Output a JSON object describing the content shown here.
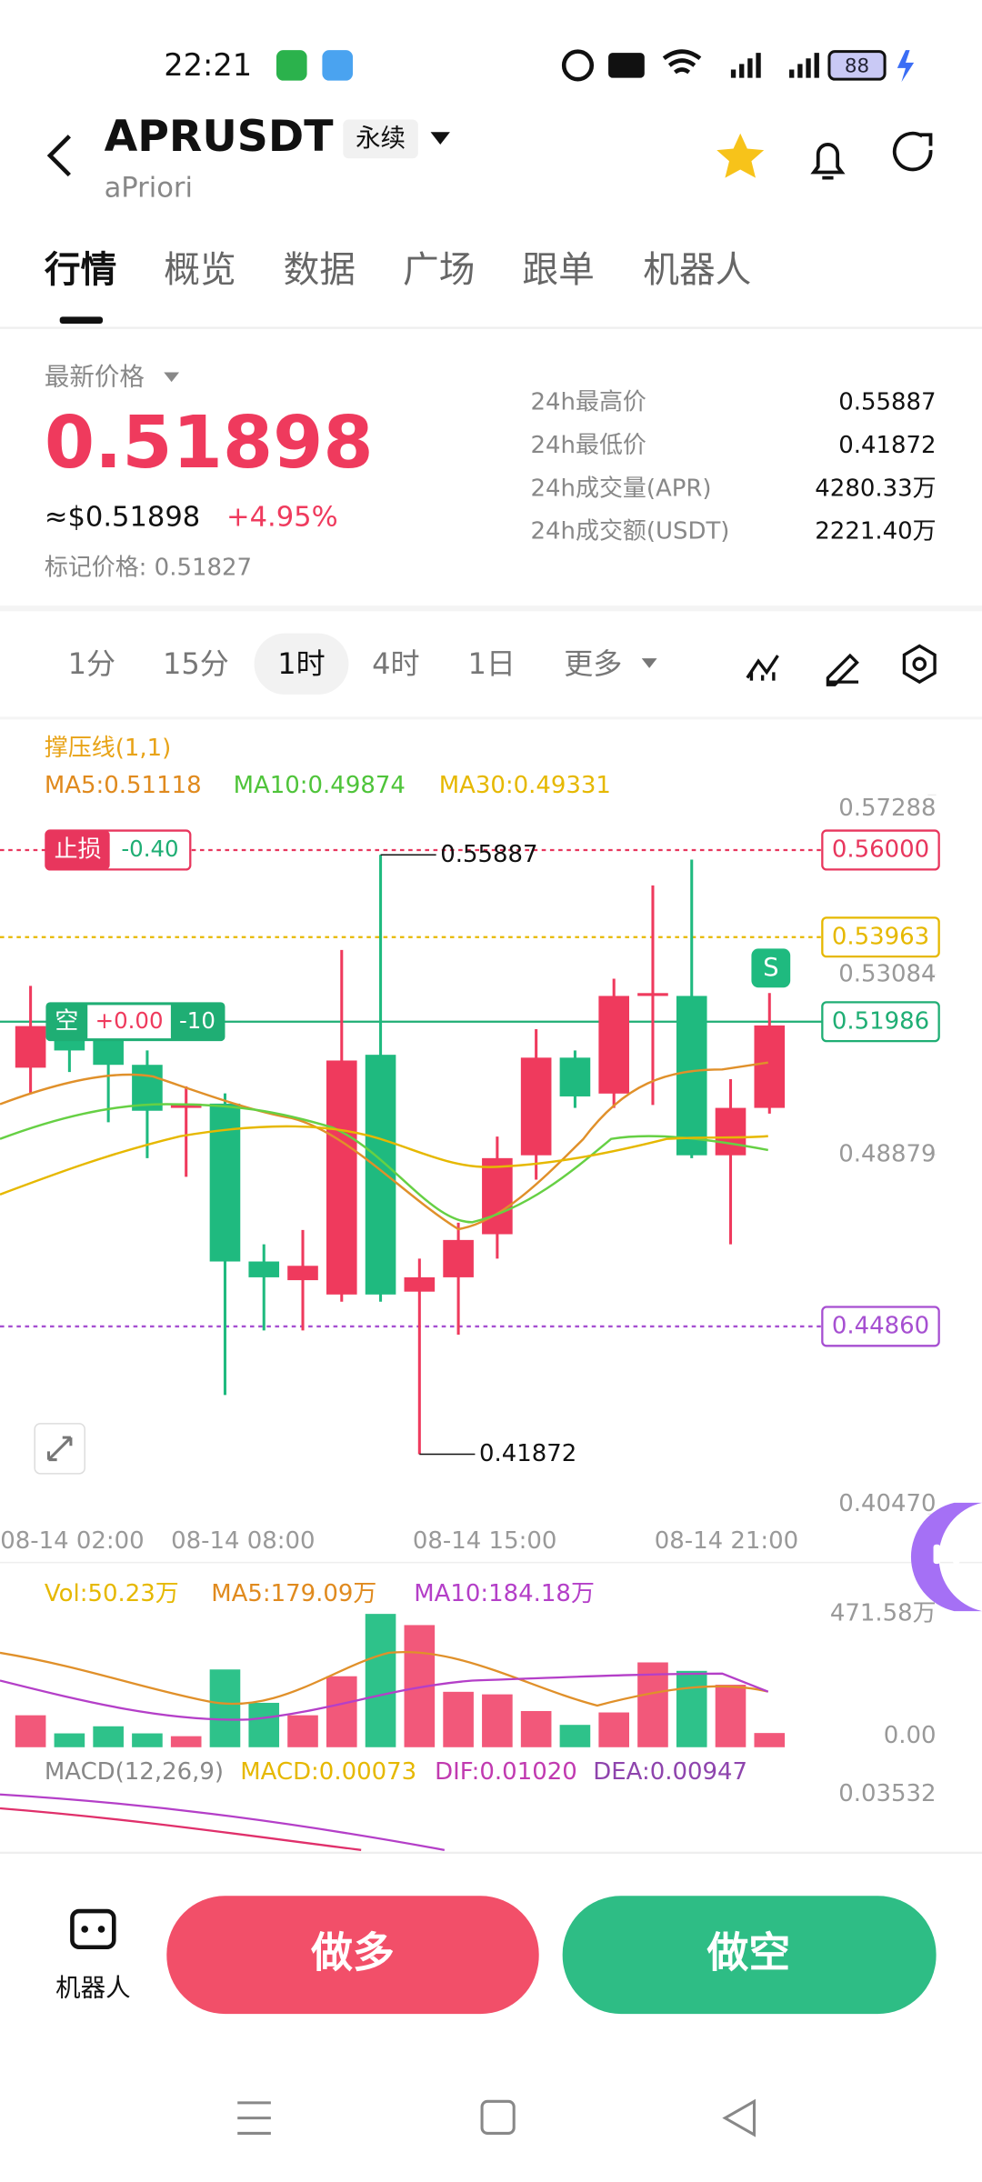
{
  "status_bar": {
    "time": "22:21",
    "battery": "88"
  },
  "header": {
    "symbol": "APRUSDT",
    "contract": "永续",
    "name": "aPriori"
  },
  "tabs": [
    "行情",
    "概览",
    "数据",
    "广场",
    "跟单",
    "机器人"
  ],
  "price": {
    "label": "最新价格",
    "last": "0.51898",
    "usd": "≈$0.51898",
    "change": "+4.95%",
    "mark": "标记价格: 0.51827"
  },
  "stats": [
    {
      "label": "24h最高价",
      "value": "0.55887"
    },
    {
      "label": "24h最低价",
      "value": "0.41872"
    },
    {
      "label": "24h成交量(APR)",
      "value": "4280.33万"
    },
    {
      "label": "24h成交额(USDT)",
      "value": "2221.40万"
    }
  ],
  "intervals": [
    "1分",
    "15分",
    "1时",
    "4时",
    "1日",
    "更多"
  ],
  "kline": {
    "indicator": "撑压线(1,1)",
    "ma": [
      "MA5:0.51118",
      "MA10:0.49874",
      "MA30:0.49331"
    ],
    "ylim": [
      0.40313,
      0.58988
    ],
    "yticks": [
      0.57288,
      0.53084,
      0.48879,
      {
        "value": 0.4047,
        "label": "0.40470"
      }
    ],
    "candles": [
      [
        0.5091,
        0.52823,
        0.50305,
        0.51883
      ],
      [
        0.51816,
        0.52152,
        0.50809,
        0.51313
      ],
      [
        0.51581,
        0.51984,
        0.49634,
        0.50977
      ],
      [
        0.50977,
        0.51313,
        0.48795,
        0.49903
      ],
      [
        0.4997,
        0.50473,
        0.48358,
        0.5007
      ],
      [
        0.5007,
        0.5031,
        0.43256,
        0.46378
      ],
      [
        0.46378,
        0.46781,
        0.44766,
        0.46008
      ],
      [
        0.45941,
        0.47116,
        0.44766,
        0.46277
      ],
      [
        0.45606,
        0.53662,
        0.45438,
        0.51078
      ],
      [
        0.51212,
        0.55887,
        0.45438,
        0.45606
      ],
      [
        0.45673,
        0.46445,
        0.41872,
        0.46008
      ],
      [
        0.46008,
        0.47284,
        0.44666,
        0.46881
      ],
      [
        0.47016,
        0.49298,
        0.46445,
        0.48795
      ],
      [
        0.48862,
        0.51811,
        0.48291,
        0.51145
      ],
      [
        0.51145,
        0.51313,
        0.4997,
        0.50238
      ],
      [
        0.50305,
        0.52991,
        0.4997,
        0.52588
      ],
      [
        0.52588,
        0.55173,
        0.50037,
        0.52655
      ],
      [
        0.52588,
        0.55777,
        0.48795,
        0.48862
      ],
      [
        0.48862,
        0.50641,
        0.46781,
        0.4997
      ],
      [
        0.4997,
        0.52655,
        0.49836,
        0.51898
      ]
    ],
    "levels": [
      {
        "value": 0.56,
        "label": "0.56000",
        "color": "#e8365d"
      },
      {
        "value": 0.53963,
        "label": "0.53963",
        "color": "#e6b800"
      },
      {
        "value": 0.51986,
        "label": "0.51986",
        "color": "#1fae74"
      },
      {
        "value": 0.4486,
        "label": "0.44860",
        "color": "#a64fd1"
      }
    ],
    "stop_loss": {
      "label": "止损",
      "value": "-0.40"
    },
    "position": {
      "side": "空",
      "pnl": "+0.00",
      "size": "-10"
    },
    "signal": "S",
    "high_mark": {
      "value": 0.55887,
      "label": "0.55887"
    },
    "low_mark": {
      "value": 0.41872,
      "label": "0.41872"
    },
    "times": [
      "08-14 02:00",
      "08-14 08:00",
      "08-14 15:00",
      "08-14 21:00"
    ]
  },
  "volume": {
    "labels": [
      "Vol:50.23万",
      "MA5:179.09万",
      "MA10:184.18万"
    ],
    "axis": [
      {
        "value": 471.58,
        "label": "471.58万"
      },
      {
        "value": 0,
        "label": "0.00"
      }
    ],
    "values": [
      113,
      49,
      74,
      49,
      39,
      275,
      157,
      113,
      251,
      471.58,
      432,
      196,
      187,
      128,
      79,
      123,
      300,
      270,
      221,
      50.23
    ]
  },
  "macd": {
    "labels": [
      "MACD(12,26,9)",
      "MACD:0.00073",
      "DIF:0.01020",
      "DEA:0.00947"
    ],
    "axis": "0.03532"
  },
  "actions": {
    "robot": "机器人",
    "long": "做多",
    "short": "做空"
  }
}
